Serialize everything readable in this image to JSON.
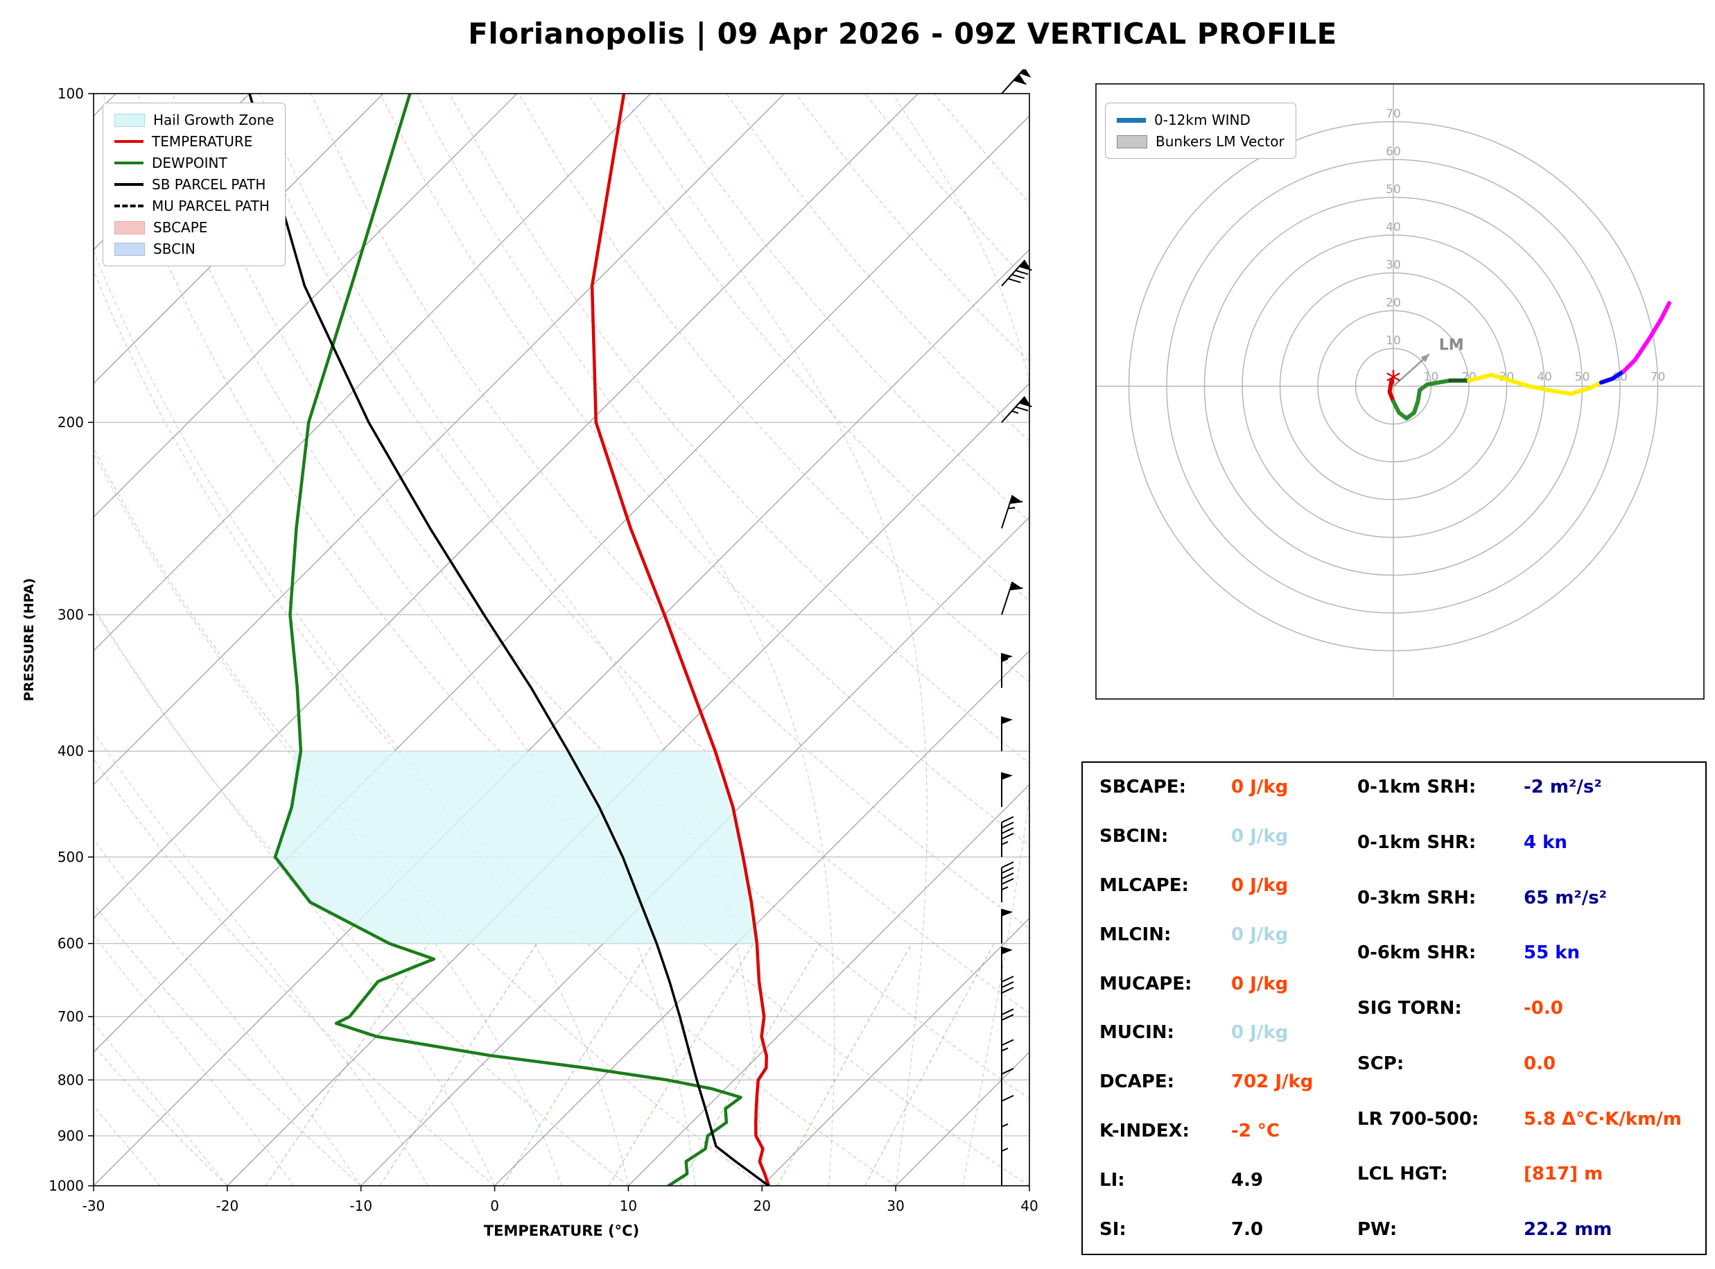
{
  "title": "Florianopolis | 09 Apr 2026 - 09Z VERTICAL PROFILE",
  "skewt": {
    "xlabel": "TEMPERATURE (°C)",
    "ylabel": "PRESSURE (HPA)",
    "x_ticks": [
      -30,
      -20,
      -10,
      0,
      10,
      20,
      30,
      40
    ],
    "p_ticks": [
      100,
      200,
      300,
      400,
      500,
      600,
      700,
      800,
      900,
      1000
    ],
    "legend_items": [
      {
        "label": "Hail Growth Zone",
        "swatch": "patch",
        "color": "#d9f6f9",
        "border": "#a9dde2"
      },
      {
        "label": "TEMPERATURE",
        "swatch": "line",
        "color": "#dd0000"
      },
      {
        "label": "DEWPOINT",
        "swatch": "line",
        "color": "#1a7d1a"
      },
      {
        "label": "SB PARCEL PATH",
        "swatch": "line",
        "color": "#000000"
      },
      {
        "label": "MU PARCEL PATH",
        "swatch": "dashed-line",
        "color": "#000000"
      },
      {
        "label": "SBCAPE",
        "swatch": "patch",
        "color": "#f5c6c6",
        "border": "#e8a8a8"
      },
      {
        "label": "SBCIN",
        "swatch": "patch",
        "color": "#c6d9f5",
        "border": "#a8c0e8"
      }
    ]
  },
  "hodograph": {
    "legend_items": [
      {
        "label": "0-12km WIND",
        "swatch": "thick-line",
        "color": "#1f77b4"
      },
      {
        "label": "Bunkers LM Vector",
        "swatch": "patch",
        "color": "#c8c8c8",
        "border": "#888888"
      }
    ],
    "lm_label": "LM"
  },
  "chart_data": [
    {
      "type": "line",
      "name": "skew-t-log-p",
      "title": "",
      "xlabel": "TEMPERATURE (°C)",
      "ylabel": "PRESSURE (HPA)",
      "xlim": [
        -30,
        40
      ],
      "pressure_lim": [
        1000,
        100
      ],
      "y_scale": "log",
      "skew": "45deg",
      "series": [
        {
          "name": "TEMPERATURE",
          "color": "#dd0000",
          "points_p_c": [
            [
              1000,
              20.5
            ],
            [
              975,
              19.3
            ],
            [
              950,
              18.0
            ],
            [
              925,
              17.3
            ],
            [
              900,
              15.8
            ],
            [
              875,
              14.8
            ],
            [
              850,
              13.8
            ],
            [
              825,
              12.8
            ],
            [
              800,
              11.8
            ],
            [
              780,
              11.5
            ],
            [
              760,
              10.6
            ],
            [
              750,
              10.0
            ],
            [
              730,
              8.8
            ],
            [
              700,
              7.5
            ],
            [
              650,
              4.5
            ],
            [
              600,
              1.5
            ],
            [
              550,
              -2.0
            ],
            [
              500,
              -6.0
            ],
            [
              450,
              -10.5
            ],
            [
              400,
              -16.0
            ],
            [
              350,
              -22.5
            ],
            [
              300,
              -30.0
            ],
            [
              250,
              -39.0
            ],
            [
              200,
              -49.5
            ],
            [
              150,
              -60.0
            ],
            [
              100,
              -72.0
            ]
          ]
        },
        {
          "name": "DEWPOINT",
          "color": "#1a7d1a",
          "points_p_c": [
            [
              1000,
              13.0
            ],
            [
              975,
              13.5
            ],
            [
              950,
              12.5
            ],
            [
              925,
              13.0
            ],
            [
              900,
              12.2
            ],
            [
              875,
              12.6
            ],
            [
              850,
              11.5
            ],
            [
              830,
              11.8
            ],
            [
              815,
              9.0
            ],
            [
              800,
              5.0
            ],
            [
              780,
              -2.0
            ],
            [
              760,
              -10.0
            ],
            [
              730,
              -20.0
            ],
            [
              710,
              -24.0
            ],
            [
              700,
              -23.5
            ],
            [
              650,
              -24.0
            ],
            [
              620,
              -21.5
            ],
            [
              600,
              -26.0
            ],
            [
              550,
              -35.0
            ],
            [
              500,
              -41.0
            ],
            [
              450,
              -43.5
            ],
            [
              400,
              -47.0
            ],
            [
              350,
              -52.0
            ],
            [
              300,
              -58.0
            ],
            [
              250,
              -64.0
            ],
            [
              200,
              -71.0
            ],
            [
              150,
              -78.0
            ],
            [
              100,
              -88.0
            ]
          ]
        },
        {
          "name": "SB PARCEL PATH",
          "color": "#000000",
          "points_p_c": [
            [
              1000,
              20.5
            ],
            [
              950,
              16.2
            ],
            [
              920,
              13.6
            ],
            [
              900,
              12.6
            ],
            [
              850,
              10.0
            ],
            [
              800,
              7.2
            ],
            [
              750,
              4.3
            ],
            [
              700,
              1.2
            ],
            [
              650,
              -2.2
            ],
            [
              600,
              -6.0
            ],
            [
              550,
              -10.3
            ],
            [
              500,
              -15.0
            ],
            [
              450,
              -20.5
            ],
            [
              400,
              -27.0
            ],
            [
              350,
              -34.5
            ],
            [
              300,
              -43.5
            ],
            [
              250,
              -54.0
            ],
            [
              200,
              -66.5
            ],
            [
              150,
              -81.5
            ],
            [
              100,
              -100.0
            ]
          ]
        },
        {
          "name": "MU PARCEL PATH",
          "color": "#000000",
          "style": "dashed",
          "points_p_c": [
            [
              1000,
              20.5
            ],
            [
              950,
              16.2
            ],
            [
              920,
              13.6
            ],
            [
              900,
              12.6
            ],
            [
              850,
              10.0
            ],
            [
              800,
              7.2
            ],
            [
              750,
              4.3
            ],
            [
              700,
              1.2
            ],
            [
              650,
              -2.2
            ],
            [
              600,
              -6.0
            ],
            [
              550,
              -10.3
            ],
            [
              500,
              -15.0
            ],
            [
              450,
              -20.5
            ],
            [
              400,
              -27.0
            ],
            [
              350,
              -34.5
            ],
            [
              300,
              -43.5
            ],
            [
              250,
              -54.0
            ],
            [
              200,
              -66.5
            ],
            [
              150,
              -81.5
            ],
            [
              100,
              -100.0
            ]
          ]
        }
      ],
      "hail_growth_zone": {
        "fill": "#d9f6f9",
        "left_edge_p_c": [
          [
            600,
            -26.0
          ],
          [
            550,
            -35.0
          ],
          [
            500,
            -41.0
          ],
          [
            450,
            -43.5
          ],
          [
            400,
            -47.5
          ]
        ],
        "right_edge_p_c": [
          [
            400,
            -16.5
          ],
          [
            450,
            -10.5
          ],
          [
            500,
            -6.0
          ],
          [
            550,
            -2.0
          ],
          [
            600,
            1.5
          ]
        ]
      },
      "wind_barbs_p_kt": [
        [
          100,
          110
        ],
        [
          150,
          90
        ],
        [
          200,
          75
        ],
        [
          250,
          65
        ],
        [
          300,
          60
        ],
        [
          350,
          55
        ],
        [
          400,
          50
        ],
        [
          450,
          50
        ],
        [
          500,
          45
        ],
        [
          550,
          45
        ],
        [
          600,
          50
        ],
        [
          650,
          50
        ],
        [
          700,
          30
        ],
        [
          750,
          20
        ],
        [
          800,
          15
        ],
        [
          850,
          10
        ],
        [
          900,
          10
        ],
        [
          950,
          5
        ],
        [
          1000,
          5
        ]
      ],
      "background": {
        "isotherm_step_c": 10,
        "dry_adiabats_style": "red dashed",
        "moist_adiabats_style": "blue dashed",
        "mixing_ratio_g_kg": [
          1,
          2,
          4,
          7,
          10,
          16,
          24
        ]
      }
    },
    {
      "type": "line",
      "name": "hodograph",
      "ring_labels_kt": [
        10,
        20,
        30,
        40,
        50,
        60,
        70
      ],
      "segments": [
        {
          "color": "#dd0000",
          "points_uv_kt": [
            [
              -0.5,
              1.5
            ],
            [
              -1.0,
              -1.5
            ],
            [
              0.0,
              -4.0
            ]
          ]
        },
        {
          "color": "#2e8b2e",
          "points_uv_kt": [
            [
              0.0,
              -4.0
            ],
            [
              1.5,
              -7.0
            ],
            [
              3.5,
              -8.5
            ],
            [
              5.5,
              -7.0
            ],
            [
              6.5,
              -4.0
            ],
            [
              7.0,
              -1.0
            ],
            [
              9.0,
              0.5
            ],
            [
              12.0,
              1.0
            ],
            [
              15.0,
              1.5
            ]
          ]
        },
        {
          "color": "#1c5c1c",
          "points_uv_kt": [
            [
              15.0,
              1.5
            ],
            [
              20.0,
              1.5
            ]
          ]
        },
        {
          "color": "#ffee00",
          "points_uv_kt": [
            [
              20.0,
              1.5
            ],
            [
              26.0,
              3.0
            ],
            [
              31.0,
              1.5
            ],
            [
              36.0,
              0.0
            ],
            [
              41.0,
              -1.0
            ],
            [
              47.0,
              -2.0
            ],
            [
              52.0,
              -0.5
            ],
            [
              55.0,
              1.0
            ]
          ]
        },
        {
          "color": "#0000ff",
          "points_uv_kt": [
            [
              55.0,
              1.0
            ],
            [
              58.0,
              2.0
            ],
            [
              61.0,
              4.0
            ]
          ]
        },
        {
          "color": "#ff00ff",
          "points_uv_kt": [
            [
              61.0,
              4.0
            ],
            [
              64.0,
              7.0
            ],
            [
              68.0,
              13.0
            ],
            [
              71.0,
              18.0
            ],
            [
              73.0,
              22.0
            ]
          ]
        }
      ],
      "bunkers_lm_vector_uv_kt": [
        9.5,
        8.5
      ],
      "storm_marker_uv_kt": [
        0.0,
        0.7
      ]
    },
    {
      "type": "table",
      "name": "severe-indices",
      "columns": [
        "parameter",
        "value"
      ],
      "left_rows": [
        {
          "label": "SBCAPE:",
          "value": "0 J/kg",
          "color": "#ff4500"
        },
        {
          "label": "SBCIN:",
          "value": "0 J/kg",
          "color": "#add8e6"
        },
        {
          "label": "MLCAPE:",
          "value": "0 J/kg",
          "color": "#ff4500"
        },
        {
          "label": "MLCIN:",
          "value": "0 J/kg",
          "color": "#add8e6"
        },
        {
          "label": "MUCAPE:",
          "value": "0 J/kg",
          "color": "#ff4500"
        },
        {
          "label": "MUCIN:",
          "value": "0 J/kg",
          "color": "#add8e6"
        },
        {
          "label": "DCAPE:",
          "value": "702 J/kg",
          "color": "#ff4500"
        },
        {
          "label": "K-INDEX:",
          "value": "-2 °C",
          "color": "#ff4500"
        },
        {
          "label": "LI:",
          "value": "4.9",
          "color": "#000000"
        },
        {
          "label": "SI:",
          "value": "7.0",
          "color": "#000000"
        }
      ],
      "right_rows": [
        {
          "label": "0-1km SRH:",
          "value": "-2 m²/s²",
          "color": "#00008b"
        },
        {
          "label": "0-1km SHR:",
          "value": "4 kn",
          "color": "#0000ee"
        },
        {
          "label": "0-3km SRH:",
          "value": "65 m²/s²",
          "color": "#00008b"
        },
        {
          "label": "0-6km SHR:",
          "value": "55 kn",
          "color": "#0000ee"
        },
        {
          "label": "SIG TORN:",
          "value": "-0.0",
          "color": "#ff4500"
        },
        {
          "label": "SCP:",
          "value": "0.0",
          "color": "#ff4500"
        },
        {
          "label": "LR 700-500:",
          "value": "5.8 Δ°C·K/km/m",
          "color": "#ff4500"
        },
        {
          "label": "LCL HGT:",
          "value": "[817] m",
          "color": "#ff4500"
        },
        {
          "label": "PW:",
          "value": "22.2 mm",
          "color": "#00008b"
        }
      ]
    }
  ]
}
